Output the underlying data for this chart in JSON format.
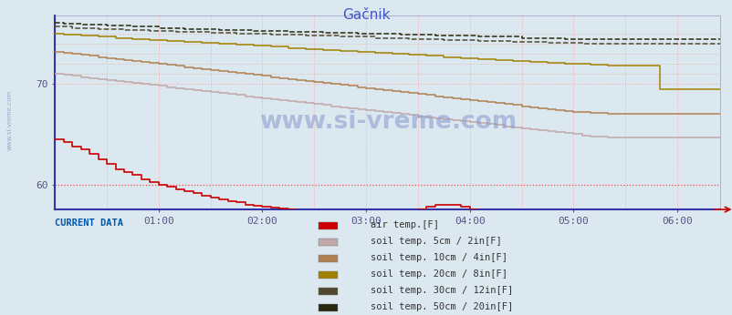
{
  "title": "Gačnik",
  "title_color": "#4455cc",
  "bg_color": "#dce8f0",
  "plot_bg": "#dce8f0",
  "ymin": 57.5,
  "ymax": 76.8,
  "yticks": [
    60,
    70
  ],
  "xlabel_times": [
    "01:00",
    "02:00",
    "03:00",
    "04:00",
    "05:00",
    "06:00"
  ],
  "hgrid_lines": [
    {
      "y": 60.0,
      "color": "#ff4444",
      "ls": ":",
      "lw": 0.9
    },
    {
      "y": 70.0,
      "color": "#ffaaaa",
      "ls": ":",
      "lw": 0.8
    },
    {
      "y": 71.0,
      "color": "#ddbbaa",
      "ls": ":",
      "lw": 0.7
    },
    {
      "y": 72.0,
      "color": "#ddbbaa",
      "ls": ":",
      "lw": 0.7
    },
    {
      "y": 73.0,
      "color": "#ddbbaa",
      "ls": ":",
      "lw": 0.7
    },
    {
      "y": 74.0,
      "color": "#ddbbaa",
      "ls": ":",
      "lw": 0.7
    },
    {
      "y": 75.0,
      "color": "#ddbbaa",
      "ls": ":",
      "lw": 0.7
    }
  ],
  "legend_labels": [
    "air temp.[F]",
    "soil temp. 5cm / 2in[F]",
    "soil temp. 10cm / 4in[F]",
    "soil temp. 20cm / 8in[F]",
    "soil temp. 30cm / 12in[F]",
    "soil temp. 50cm / 20in[F]"
  ],
  "legend_colors": [
    "#cc0000",
    "#c0a8a8",
    "#b08050",
    "#a08000",
    "#504830",
    "#282810"
  ],
  "current_data_label": "CURRENT DATA",
  "n_points": 78,
  "air_temp": [
    64.5,
    64.2,
    63.8,
    63.5,
    63.0,
    62.5,
    62.0,
    61.5,
    61.2,
    61.0,
    60.5,
    60.2,
    60.0,
    59.8,
    59.5,
    59.3,
    59.1,
    58.9,
    58.7,
    58.5,
    58.3,
    58.2,
    58.0,
    57.9,
    57.8,
    57.7,
    57.6,
    57.5,
    57.4,
    57.3,
    57.2,
    57.1,
    57.0,
    57.0,
    56.9,
    56.9,
    56.8,
    56.8,
    56.8,
    56.9,
    57.0,
    57.2,
    57.5,
    57.8,
    58.0,
    58.0,
    58.0,
    57.8,
    57.5,
    57.3,
    57.1,
    57.0,
    56.9,
    56.9,
    56.8,
    56.8,
    56.8,
    56.8,
    56.8,
    56.8,
    56.8,
    56.8,
    56.8,
    56.8,
    56.8,
    56.8,
    56.8,
    56.8,
    56.8,
    56.8,
    56.8,
    56.8,
    56.8,
    56.8,
    56.8,
    56.8,
    56.8,
    56.8
  ],
  "soil_5cm": [
    71.0,
    70.9,
    70.8,
    70.7,
    70.6,
    70.5,
    70.4,
    70.3,
    70.2,
    70.1,
    70.0,
    69.9,
    69.8,
    69.7,
    69.6,
    69.5,
    69.4,
    69.3,
    69.2,
    69.1,
    69.0,
    68.9,
    68.8,
    68.7,
    68.6,
    68.5,
    68.4,
    68.3,
    68.2,
    68.1,
    68.0,
    67.9,
    67.8,
    67.7,
    67.6,
    67.5,
    67.4,
    67.3,
    67.2,
    67.1,
    67.0,
    66.9,
    66.8,
    66.7,
    66.6,
    66.5,
    66.4,
    66.3,
    66.2,
    66.1,
    66.0,
    65.9,
    65.8,
    65.7,
    65.6,
    65.5,
    65.4,
    65.3,
    65.2,
    65.1,
    65.0,
    64.9,
    64.8,
    64.8,
    64.7,
    64.7,
    64.7,
    64.7,
    64.7,
    64.7,
    64.7,
    64.7,
    64.7,
    64.7,
    64.7,
    64.7,
    64.7,
    64.7
  ],
  "soil_10cm": [
    73.2,
    73.1,
    73.0,
    72.9,
    72.8,
    72.7,
    72.6,
    72.5,
    72.4,
    72.3,
    72.2,
    72.1,
    72.0,
    71.9,
    71.8,
    71.7,
    71.6,
    71.5,
    71.4,
    71.3,
    71.2,
    71.1,
    71.0,
    70.9,
    70.8,
    70.7,
    70.6,
    70.5,
    70.4,
    70.3,
    70.2,
    70.1,
    70.0,
    69.9,
    69.8,
    69.7,
    69.6,
    69.5,
    69.4,
    69.3,
    69.2,
    69.1,
    69.0,
    68.9,
    68.8,
    68.7,
    68.6,
    68.5,
    68.4,
    68.3,
    68.2,
    68.1,
    68.0,
    67.9,
    67.8,
    67.7,
    67.6,
    67.5,
    67.4,
    67.3,
    67.2,
    67.2,
    67.1,
    67.1,
    67.0,
    67.0,
    67.0,
    67.0,
    67.0,
    67.0,
    67.0,
    67.0,
    67.0,
    67.0,
    67.0,
    67.0,
    67.0,
    67.0
  ],
  "soil_20cm": [
    75.0,
    74.9,
    74.9,
    74.8,
    74.8,
    74.7,
    74.7,
    74.6,
    74.6,
    74.5,
    74.5,
    74.4,
    74.4,
    74.3,
    74.3,
    74.2,
    74.2,
    74.1,
    74.1,
    74.0,
    74.0,
    73.9,
    73.9,
    73.8,
    73.8,
    73.7,
    73.7,
    73.6,
    73.6,
    73.5,
    73.5,
    73.4,
    73.4,
    73.3,
    73.3,
    73.2,
    73.2,
    73.1,
    73.1,
    73.0,
    73.0,
    72.9,
    72.9,
    72.8,
    72.8,
    72.7,
    72.7,
    72.6,
    72.6,
    72.5,
    72.5,
    72.4,
    72.4,
    72.3,
    72.3,
    72.2,
    72.2,
    72.1,
    72.1,
    72.0,
    72.0,
    72.0,
    71.9,
    71.9,
    71.8,
    71.8,
    71.8,
    71.8,
    71.8,
    71.8,
    69.5,
    69.5,
    69.5,
    69.5,
    69.5,
    69.5,
    69.5,
    69.5
  ],
  "soil_30cm": [
    75.7,
    75.7,
    75.6,
    75.6,
    75.6,
    75.5,
    75.5,
    75.5,
    75.4,
    75.4,
    75.4,
    75.3,
    75.3,
    75.3,
    75.2,
    75.2,
    75.2,
    75.2,
    75.1,
    75.1,
    75.1,
    75.0,
    75.0,
    75.0,
    75.0,
    74.9,
    74.9,
    74.9,
    74.9,
    74.8,
    74.8,
    74.8,
    74.8,
    74.7,
    74.7,
    74.7,
    74.7,
    74.6,
    74.6,
    74.6,
    74.6,
    74.5,
    74.5,
    74.5,
    74.5,
    74.4,
    74.4,
    74.4,
    74.4,
    74.3,
    74.3,
    74.3,
    74.3,
    74.2,
    74.2,
    74.2,
    74.2,
    74.1,
    74.1,
    74.1,
    74.1,
    74.0,
    74.0,
    74.0,
    74.0,
    74.0,
    74.0,
    74.0,
    74.0,
    74.0,
    74.0,
    74.0,
    74.0,
    74.0,
    74.0,
    74.0,
    74.0,
    74.0
  ],
  "soil_50cm": [
    76.1,
    76.0,
    76.0,
    75.9,
    75.9,
    75.9,
    75.8,
    75.8,
    75.8,
    75.7,
    75.7,
    75.7,
    75.6,
    75.6,
    75.6,
    75.5,
    75.5,
    75.5,
    75.5,
    75.4,
    75.4,
    75.4,
    75.4,
    75.3,
    75.3,
    75.3,
    75.3,
    75.2,
    75.2,
    75.2,
    75.2,
    75.1,
    75.1,
    75.1,
    75.1,
    75.0,
    75.0,
    75.0,
    75.0,
    75.0,
    74.9,
    74.9,
    74.9,
    74.9,
    74.8,
    74.8,
    74.8,
    74.8,
    74.8,
    74.7,
    74.7,
    74.7,
    74.7,
    74.7,
    74.6,
    74.6,
    74.6,
    74.6,
    74.6,
    74.5,
    74.5,
    74.5,
    74.5,
    74.5,
    74.5,
    74.5,
    74.5,
    74.5,
    74.5,
    74.5,
    74.5,
    74.5,
    74.5,
    74.5,
    74.5,
    74.5,
    74.5,
    74.5
  ]
}
